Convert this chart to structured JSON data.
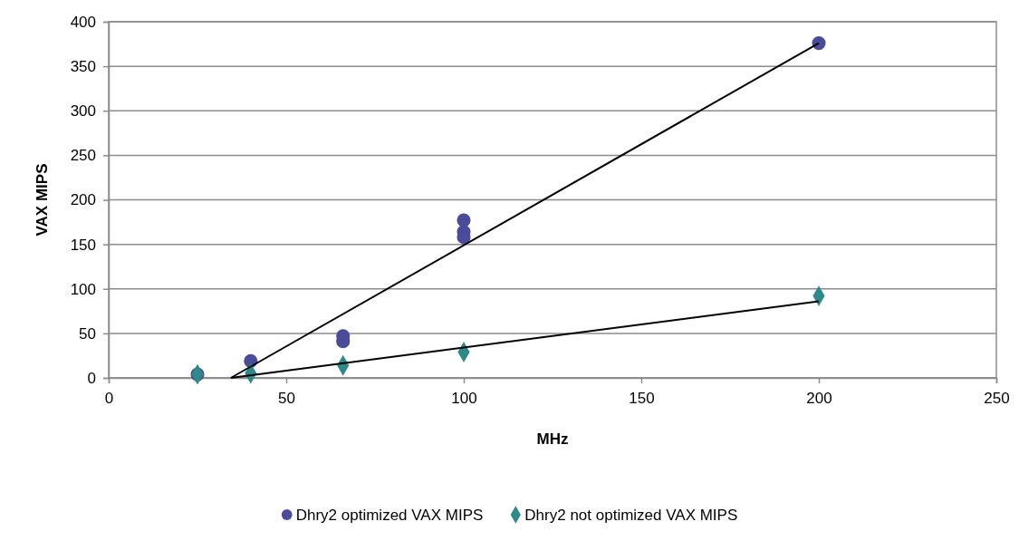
{
  "chart_data": {
    "type": "scatter",
    "xlabel": "MHz",
    "ylabel": "VAX MIPS",
    "xlim": [
      0,
      250
    ],
    "xticks": [
      0,
      50,
      100,
      150,
      200,
      250
    ],
    "ylim": [
      0,
      400
    ],
    "yticks": [
      0,
      50,
      100,
      150,
      200,
      250,
      300,
      350,
      400
    ],
    "grid": "y",
    "legend": "bottom",
    "series": [
      {
        "name": "Dhry2 optimized VAX MIPS",
        "color": "#4b4b9b",
        "marker": "circle",
        "x": [
          25,
          40,
          66,
          66,
          100,
          100,
          100,
          200
        ],
        "values": [
          4,
          19,
          47,
          41,
          177,
          164,
          158,
          376
        ]
      },
      {
        "name": "Dhry2 not optimized VAX MIPS",
        "color": "#2e8a8a",
        "marker": "diamond",
        "x": [
          25,
          40,
          66,
          100,
          200
        ],
        "values": [
          4,
          5,
          14,
          29,
          92
        ]
      },
      {
        "type": "line",
        "color": "#000000",
        "x": [
          34.4,
          200
        ],
        "values": [
          0,
          376
        ]
      },
      {
        "type": "line",
        "color": "#000000",
        "x": [
          34.4,
          200
        ],
        "values": [
          0,
          86
        ]
      }
    ]
  }
}
